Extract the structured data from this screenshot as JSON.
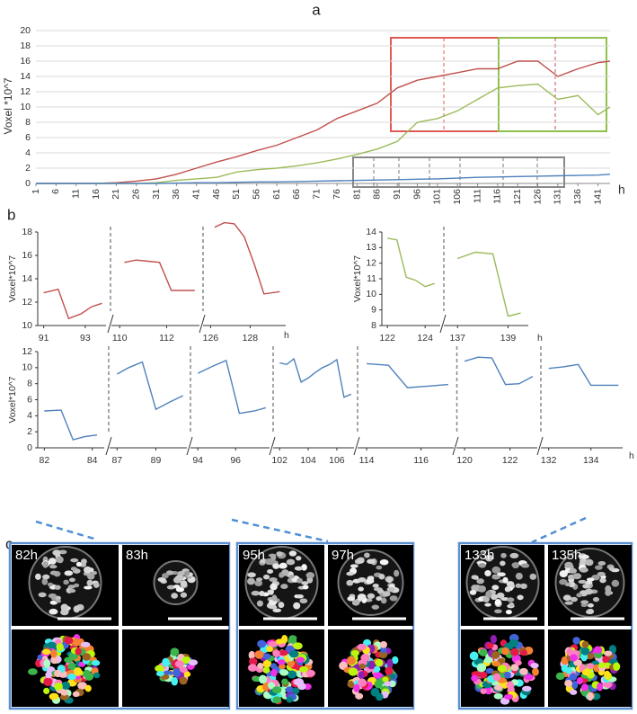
{
  "chart_data": [
    {
      "type": "line",
      "panel": "a",
      "ylabel": "Voxel *10^7",
      "xlabel": "h",
      "xlim": [
        1,
        144
      ],
      "ylim": [
        0,
        20
      ],
      "xticks": [
        1,
        6,
        11,
        16,
        21,
        26,
        31,
        36,
        41,
        46,
        51,
        56,
        61,
        66,
        71,
        76,
        81,
        86,
        91,
        96,
        101,
        106,
        111,
        116,
        121,
        126,
        131,
        136,
        141
      ],
      "yticks": [
        0,
        2,
        4,
        6,
        8,
        10,
        12,
        14,
        16,
        18,
        20
      ],
      "grid": true,
      "x": [
        1,
        6,
        11,
        16,
        21,
        26,
        31,
        36,
        41,
        46,
        51,
        56,
        61,
        66,
        71,
        76,
        81,
        86,
        91,
        96,
        101,
        106,
        111,
        116,
        121,
        126,
        131,
        136,
        141,
        144
      ],
      "series": [
        {
          "color": "#c0504d",
          "values": [
            0,
            0,
            0,
            0,
            0.1,
            0.3,
            0.6,
            1.2,
            2,
            2.8,
            3.5,
            4.3,
            5,
            6,
            7,
            8.5,
            9.5,
            10.5,
            12.5,
            13.5,
            14,
            14.5,
            15,
            15,
            16,
            16,
            14,
            15,
            15.8,
            16
          ]
        },
        {
          "color": "#9bbb59",
          "values": [
            0,
            0,
            0,
            0,
            0,
            0,
            0.1,
            0.4,
            0.6,
            0.8,
            1.5,
            1.8,
            2,
            2.3,
            2.7,
            3.2,
            3.8,
            4.5,
            5.5,
            8,
            8.5,
            9.5,
            11,
            12.5,
            12.8,
            13,
            11,
            11.5,
            9,
            10
          ]
        },
        {
          "color": "#4f81bd",
          "values": [
            0,
            0,
            0,
            0,
            0,
            0,
            0,
            0.05,
            0.1,
            0.1,
            0.15,
            0.2,
            0.2,
            0.25,
            0.3,
            0.35,
            0.4,
            0.45,
            0.5,
            0.55,
            0.6,
            0.7,
            0.8,
            0.85,
            0.9,
            0.95,
            1,
            1.05,
            1.1,
            1.2
          ]
        }
      ]
    },
    {
      "type": "line",
      "panel": "b",
      "ylabel": "Voxel*10^7",
      "xlabel": "h",
      "color": "#c0504d",
      "ylim": [
        10,
        18
      ],
      "yticks": [
        10,
        12,
        14,
        16,
        18
      ],
      "segments": [
        {
          "xlim": [
            90.8,
            94
          ],
          "xticks": [
            91,
            93
          ],
          "x": [
            91,
            91.7,
            92.2,
            92.8,
            93.3,
            93.8
          ],
          "values": [
            12.8,
            13.1,
            10.6,
            11.0,
            11.6,
            11.9
          ]
        },
        {
          "xlim": [
            109.8,
            113.4
          ],
          "xticks": [
            110,
            112
          ],
          "x": [
            110.2,
            110.7,
            111.2,
            111.7,
            112.2,
            112.7,
            113.2
          ],
          "values": [
            15.4,
            15.6,
            15.5,
            15.4,
            13.0,
            13.0,
            13.0
          ]
        },
        {
          "xlim": [
            125.8,
            129.8
          ],
          "xticks": [
            126,
            128
          ],
          "x": [
            126.2,
            126.7,
            127.2,
            127.7,
            128.2,
            128.7,
            129.5
          ],
          "values": [
            18.4,
            18.8,
            18.7,
            17.6,
            15.3,
            12.7,
            12.9
          ]
        }
      ]
    },
    {
      "type": "line",
      "ylabel": "Voxel*10^7",
      "xlabel": "h",
      "color": "#9bbb59",
      "ylim": [
        8,
        14
      ],
      "yticks": [
        8,
        9,
        10,
        11,
        12,
        13,
        14
      ],
      "segments": [
        {
          "xlim": [
            121.8,
            124.8
          ],
          "xticks": [
            122,
            124
          ],
          "x": [
            122,
            122.5,
            123,
            123.5,
            124,
            124.5
          ],
          "values": [
            13.6,
            13.5,
            11.1,
            10.9,
            10.5,
            10.7
          ]
        },
        {
          "xlim": [
            136.6,
            139.8
          ],
          "xticks": [
            137,
            139
          ],
          "x": [
            137,
            137.7,
            138.4,
            139,
            139.5
          ],
          "values": [
            12.3,
            12.7,
            12.6,
            8.6,
            8.8
          ]
        }
      ]
    },
    {
      "type": "line",
      "ylabel": "Voxel*10^7",
      "xlabel": "h",
      "color": "#4f81bd",
      "ylim": [
        0,
        12
      ],
      "yticks": [
        0,
        2,
        4,
        6,
        8,
        10,
        12
      ],
      "segments": [
        {
          "xlim": [
            81.8,
            84.5
          ],
          "xticks": [
            82,
            84
          ],
          "x": [
            82,
            82.7,
            83.2,
            83.7,
            84.2
          ],
          "values": [
            4.6,
            4.7,
            1.0,
            1.4,
            1.6
          ]
        },
        {
          "xlim": [
            86.8,
            90.6
          ],
          "xticks": [
            87,
            89
          ],
          "x": [
            87,
            87.6,
            88.3,
            89,
            89.7,
            90.4
          ],
          "values": [
            9.2,
            10.0,
            10.7,
            4.8,
            5.7,
            6.5
          ]
        },
        {
          "xlim": [
            93.8,
            97.8
          ],
          "xticks": [
            94,
            96
          ],
          "x": [
            94,
            94.8,
            95.5,
            96.2,
            97,
            97.6
          ],
          "values": [
            9.3,
            10.2,
            10.9,
            4.3,
            4.6,
            5.0
          ]
        },
        {
          "xlim": [
            101.8,
            107.2
          ],
          "xticks": [
            102,
            104,
            106
          ],
          "x": [
            102,
            102.5,
            103,
            103.5,
            104,
            104.5,
            105,
            105.5,
            106,
            106.5,
            107
          ],
          "values": [
            10.6,
            10.4,
            11.1,
            8.2,
            8.7,
            9.4,
            10.0,
            10.4,
            11.0,
            6.3,
            6.7
          ]
        },
        {
          "xlim": [
            113.8,
            117.2
          ],
          "xticks": [
            114,
            116
          ],
          "x": [
            114,
            114.8,
            115.5,
            116.3,
            117
          ],
          "values": [
            10.5,
            10.3,
            7.5,
            7.7,
            7.9
          ]
        },
        {
          "xlim": [
            119.8,
            123.2
          ],
          "xticks": [
            120,
            122
          ],
          "x": [
            120,
            120.6,
            121.2,
            121.8,
            122.4,
            123
          ],
          "values": [
            10.8,
            11.3,
            11.2,
            7.9,
            8.0,
            8.9
          ]
        },
        {
          "xlim": [
            131.8,
            135.5
          ],
          "xticks": [
            132,
            134
          ],
          "x": [
            132,
            132.7,
            133.4,
            134,
            134.7,
            135.3
          ],
          "values": [
            9.9,
            10.1,
            10.4,
            7.8,
            7.8,
            7.8
          ]
        }
      ]
    }
  ],
  "images": {
    "panel": "c",
    "frames": [
      [
        "82h",
        "83h"
      ],
      [
        "95h",
        "97h"
      ],
      [
        "133h",
        "135h"
      ]
    ]
  }
}
